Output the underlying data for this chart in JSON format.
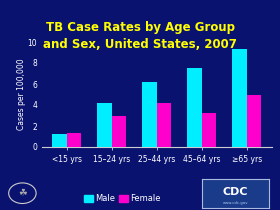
{
  "title_line1": "TB Case Rates by Age Group",
  "title_line2": "and Sex, United States, 2007",
  "categories": [
    "<15 yrs",
    "15–24 yrs",
    "25–44 yrs",
    "45–64 yrs",
    "≥65 yrs"
  ],
  "male_values": [
    1.2,
    4.2,
    6.2,
    7.5,
    9.3
  ],
  "female_values": [
    1.3,
    3.0,
    4.2,
    3.2,
    5.0
  ],
  "male_color": "#00EEFF",
  "female_color": "#FF00CC",
  "background_color": "#0A1270",
  "plot_bg_color": "#0A1270",
  "title_color": "#FFFF00",
  "axis_color": "#CCCCCC",
  "tick_color": "#FFFFFF",
  "ylabel": "Cases per 100,000",
  "ylim": [
    0,
    10
  ],
  "yticks": [
    0,
    2,
    4,
    6,
    8,
    10
  ],
  "legend_labels": [
    "Male",
    "Female"
  ],
  "bar_width": 0.32,
  "title_fontsize": 8.5,
  "label_fontsize": 5.5,
  "tick_fontsize": 5.5,
  "legend_fontsize": 6.0,
  "cdc_bg": "#1A3A8A",
  "cdc_text_color": "#FFFFFF",
  "cdc_border": "#AABBDD"
}
